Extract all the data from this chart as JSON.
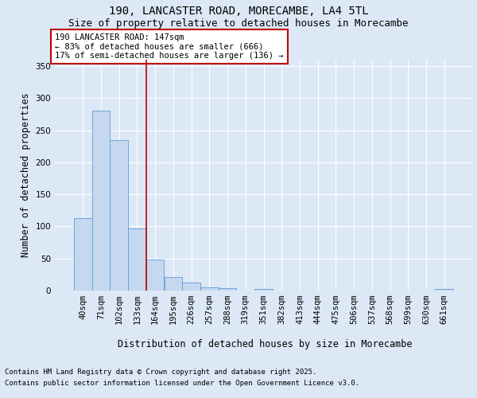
{
  "title_line1": "190, LANCASTER ROAD, MORECAMBE, LA4 5TL",
  "title_line2": "Size of property relative to detached houses in Morecambe",
  "xlabel": "Distribution of detached houses by size in Morecambe",
  "ylabel": "Number of detached properties",
  "categories": [
    "40sqm",
    "71sqm",
    "102sqm",
    "133sqm",
    "164sqm",
    "195sqm",
    "226sqm",
    "257sqm",
    "288sqm",
    "319sqm",
    "351sqm",
    "382sqm",
    "413sqm",
    "444sqm",
    "475sqm",
    "506sqm",
    "537sqm",
    "568sqm",
    "599sqm",
    "630sqm",
    "661sqm"
  ],
  "values": [
    113,
    280,
    235,
    97,
    49,
    21,
    13,
    5,
    4,
    0,
    2,
    0,
    0,
    0,
    0,
    0,
    0,
    0,
    0,
    0,
    2
  ],
  "bar_color": "#c5d8f0",
  "bar_edge_color": "#5b9bd5",
  "vline_x": 3.5,
  "vline_color": "#c00000",
  "annotation_text": "190 LANCASTER ROAD: 147sqm\n← 83% of detached houses are smaller (666)\n17% of semi-detached houses are larger (136) →",
  "annotation_box_color": "white",
  "annotation_box_edge_color": "#c00000",
  "ylim": [
    0,
    360
  ],
  "yticks": [
    0,
    50,
    100,
    150,
    200,
    250,
    300,
    350
  ],
  "background_color": "#dce8f5",
  "plot_background": "#dce8f5",
  "grid_color": "white",
  "footer_line1": "Contains HM Land Registry data © Crown copyright and database right 2025.",
  "footer_line2": "Contains public sector information licensed under the Open Government Licence v3.0.",
  "title_fontsize": 10,
  "subtitle_fontsize": 9,
  "axis_label_fontsize": 8.5,
  "tick_fontsize": 7.5,
  "annotation_fontsize": 7.5,
  "footer_fontsize": 6.5
}
